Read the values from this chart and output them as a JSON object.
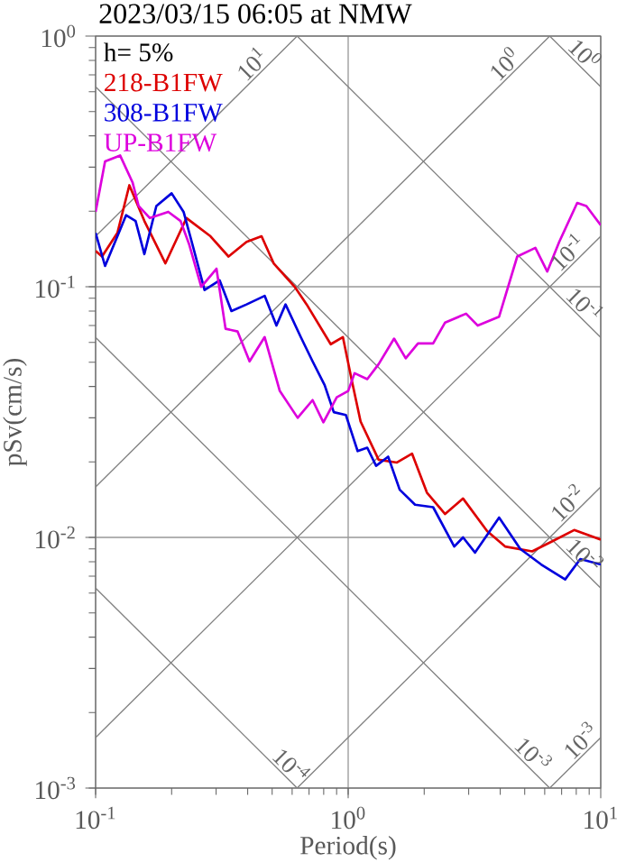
{
  "chart_data": {
    "type": "line",
    "title": "2023/03/15 06:05 at NMW",
    "xlabel": "Period(s)",
    "ylabel": "pSv(cm/s)",
    "log": "xy",
    "grid": true,
    "legend": "top left",
    "xlim": [
      0.1,
      10
    ],
    "ylim": [
      0.001,
      1
    ],
    "xticks": [
      {
        "value": 0.1,
        "label": "10$^{-1}$"
      },
      {
        "value": 1,
        "label": "10$^{0}$"
      },
      {
        "value": 10,
        "label": "10$^{1}$"
      }
    ],
    "yticks": [
      {
        "value": 0.001,
        "label": "10$^{-3}$"
      },
      {
        "value": 0.01,
        "label": "10$^{-2}$"
      },
      {
        "value": 0.1,
        "label": "10$^{-1}$"
      },
      {
        "value": 1,
        "label": "10$^{0}$"
      }
    ],
    "series": [
      {
        "color": "#808080",
        "x": [
          0.1,
          0.628
        ],
        "values": [
          0.159,
          1
        ]
      },
      {
        "color": "#808080",
        "x": [
          0.1,
          6.28
        ],
        "values": [
          0.0159,
          1
        ]
      },
      {
        "color": "#808080",
        "x": [
          0.1,
          10
        ],
        "values": [
          0.00159,
          0.159
        ]
      },
      {
        "color": "#808080",
        "x": [
          0.628,
          10
        ],
        "values": [
          0.001,
          0.0159
        ]
      },
      {
        "color": "#808080",
        "x": [
          6.28,
          10
        ],
        "values": [
          0.001,
          0.00159
        ]
      },
      {
        "color": "#808080",
        "x": [
          6.28,
          10
        ],
        "values": [
          1,
          0.628
        ]
      },
      {
        "color": "#808080",
        "x": [
          0.628,
          10
        ],
        "values": [
          1,
          0.0628
        ]
      },
      {
        "color": "#808080",
        "x": [
          0.1,
          10
        ],
        "values": [
          0.628,
          0.00628
        ]
      },
      {
        "color": "#808080",
        "x": [
          0.1,
          6.28
        ],
        "values": [
          0.0628,
          0.001
        ]
      },
      {
        "color": "#808080",
        "x": [
          0.1,
          0.628
        ],
        "values": [
          0.00628,
          0.001
        ]
      },
      {
        "name": "218-B1FW",
        "color": "#dd0000",
        "x": [
          0.1,
          0.106,
          0.122,
          0.136,
          0.156,
          0.189,
          0.229,
          0.285,
          0.336,
          0.396,
          0.454,
          0.507,
          0.614,
          0.685,
          0.853,
          0.953,
          1.03,
          1.12,
          1.32,
          1.56,
          1.79,
          2.05,
          2.42,
          2.85,
          3.55,
          4.18,
          5.35,
          6.49,
          7.85,
          10
        ],
        "values": [
          0.139,
          0.132,
          0.164,
          0.254,
          0.183,
          0.124,
          0.188,
          0.159,
          0.132,
          0.151,
          0.159,
          0.124,
          0.1,
          0.085,
          0.059,
          0.063,
          0.043,
          0.029,
          0.0204,
          0.0199,
          0.0216,
          0.0151,
          0.0124,
          0.0143,
          0.0106,
          0.0092,
          0.0088,
          0.0097,
          0.0107,
          0.0098
        ]
      },
      {
        "name": "308-B1FW",
        "color": "#0000dd",
        "x": [
          0.1,
          0.109,
          0.122,
          0.132,
          0.144,
          0.156,
          0.174,
          0.2,
          0.223,
          0.242,
          0.27,
          0.31,
          0.345,
          0.396,
          0.467,
          0.52,
          0.565,
          0.649,
          0.723,
          0.807,
          0.877,
          0.979,
          1.09,
          1.19,
          1.29,
          1.44,
          1.6,
          1.84,
          2.17,
          2.63,
          2.85,
          3.18,
          3.96,
          4.8,
          5.81,
          7.23,
          8.3,
          10
        ],
        "values": [
          0.164,
          0.121,
          0.159,
          0.193,
          0.183,
          0.135,
          0.21,
          0.236,
          0.199,
          0.147,
          0.097,
          0.106,
          0.08,
          0.085,
          0.092,
          0.07,
          0.085,
          0.063,
          0.0504,
          0.0405,
          0.0316,
          0.0308,
          0.0221,
          0.0228,
          0.0193,
          0.021,
          0.0155,
          0.0135,
          0.0132,
          0.0092,
          0.01,
          0.0087,
          0.012,
          0.009,
          0.0078,
          0.0068,
          0.0082,
          0.0078
        ]
      },
      {
        "name": "UP-B1FW",
        "color": "#dd00dd",
        "x": [
          0.1,
          0.109,
          0.125,
          0.14,
          0.148,
          0.164,
          0.194,
          0.217,
          0.235,
          0.262,
          0.301,
          0.327,
          0.365,
          0.407,
          0.467,
          0.536,
          0.631,
          0.723,
          0.798,
          0.901,
          1.0,
          1.06,
          1.19,
          1.32,
          1.52,
          1.69,
          1.89,
          2.17,
          2.42,
          2.93,
          3.26,
          3.96,
          4.67,
          5.51,
          6.14,
          6.85,
          8.07,
          8.77,
          10
        ],
        "values": [
          0.199,
          0.316,
          0.334,
          0.261,
          0.21,
          0.188,
          0.199,
          0.183,
          0.147,
          0.1,
          0.118,
          0.068,
          0.0663,
          0.0504,
          0.063,
          0.0384,
          0.03,
          0.0353,
          0.0288,
          0.0362,
          0.0384,
          0.0452,
          0.0428,
          0.0491,
          0.0621,
          0.0518,
          0.0594,
          0.0594,
          0.072,
          0.0781,
          0.07,
          0.076,
          0.132,
          0.143,
          0.115,
          0.151,
          0.216,
          0.21,
          0.176
        ]
      }
    ],
    "annotations": [
      "h= 5%",
      {
        "text": "10$^{1}$",
        "x": 0.45,
        "y": 0.716
      },
      {
        "text": "10$^{0}$",
        "x": 4.5,
        "y": 0.716
      },
      {
        "text": "10$^{-1}$",
        "x": 8,
        "y": 0.127
      },
      {
        "text": "10$^{-2}$",
        "x": 8,
        "y": 0.0127
      },
      {
        "text": "10$^{-3}$",
        "x": 9,
        "y": 0.00143
      },
      {
        "text": "10$^{0}$",
        "x": 8,
        "y": 0.785
      },
      {
        "text": "10$^{-1}$",
        "x": 8,
        "y": 0.0785
      },
      {
        "text": "10$^{-2}$",
        "x": 8,
        "y": 0.00785
      },
      {
        "text": "10$^{-3}$",
        "x": 5,
        "y": 0.00126
      },
      {
        "text": "10$^{-4}$",
        "x": 0.55,
        "y": 0.00114
      }
    ]
  }
}
